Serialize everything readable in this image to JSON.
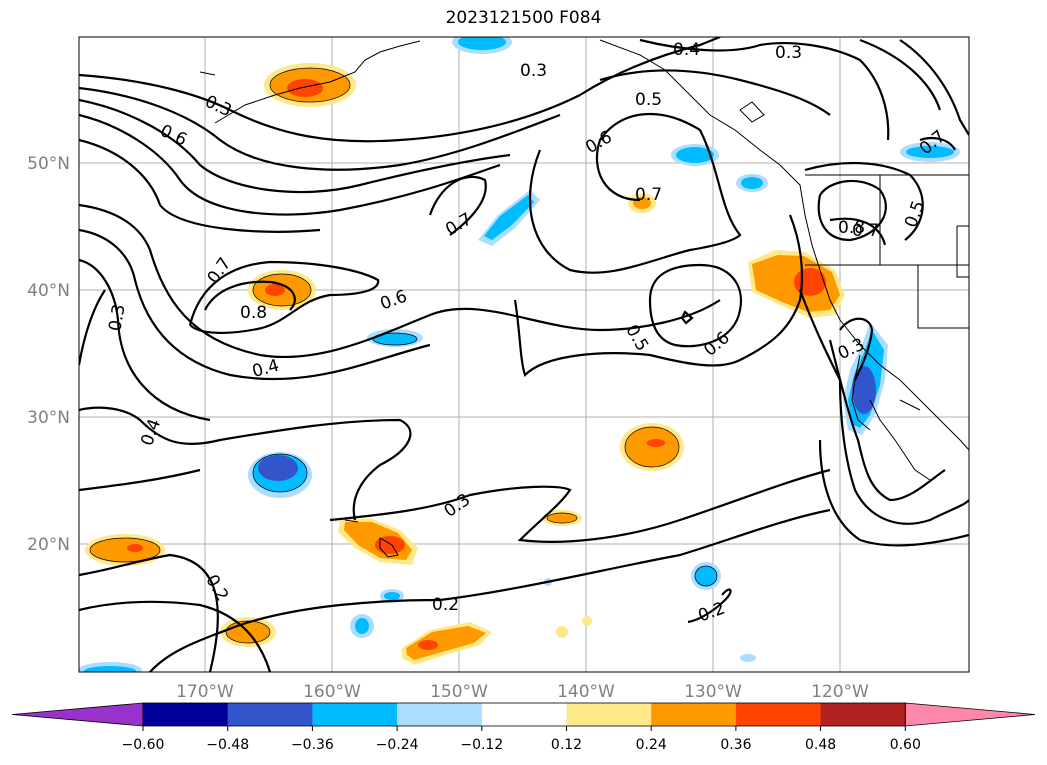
{
  "title": "2023121500 F084",
  "lat_labels": [
    "50°N",
    "40°N",
    "30°N",
    "20°N"
  ],
  "lon_labels": [
    "170°W",
    "160°W",
    "150°W",
    "140°W",
    "130°W",
    "120°W"
  ],
  "colorbar": {
    "tick_labels": [
      "−0.60",
      "−0.48",
      "−0.36",
      "−0.24",
      "−0.12",
      "0.12",
      "0.24",
      "0.36",
      "0.48",
      "0.60"
    ],
    "colors": [
      "#9933cc",
      "#000099",
      "#3355cc",
      "#00bbff",
      "#aaddff",
      "#ffffff",
      "#ffe888",
      "#ff9900",
      "#ff4400",
      "#b22222",
      "#ff88aa"
    ]
  },
  "contour_labels": [
    "0.3",
    "0.4",
    "0.5",
    "0.6",
    "0.7",
    "0.8",
    "0.2"
  ]
}
